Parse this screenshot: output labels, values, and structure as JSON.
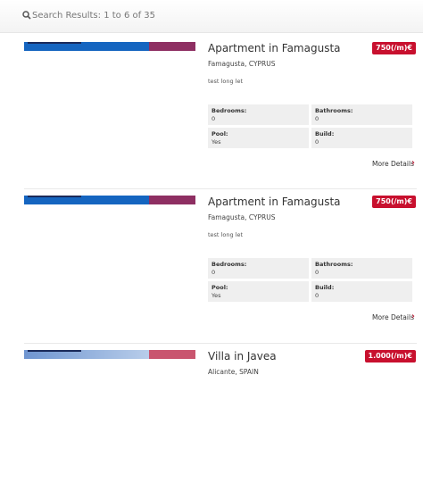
{
  "header": {
    "search_results": "Search Results: 1 to 6 of 35"
  },
  "listings": [
    {
      "title": "Apartment in Famagusta",
      "price": "750(/m)€",
      "location": "Famagusta, CYPRUS",
      "description": "test long let",
      "details": [
        {
          "label": "Bedrooms:",
          "value": "0"
        },
        {
          "label": "Bathrooms:",
          "value": "0"
        },
        {
          "label": "Pool:",
          "value": "Yes"
        },
        {
          "label": "Build:",
          "value": "0"
        }
      ],
      "more": "More Details"
    },
    {
      "title": "Apartment in Famagusta",
      "price": "750(/m)€",
      "location": "Famagusta, CYPRUS",
      "description": "test long let",
      "details": [
        {
          "label": "Bedrooms:",
          "value": "0"
        },
        {
          "label": "Bathrooms:",
          "value": "0"
        },
        {
          "label": "Pool:",
          "value": "Yes"
        },
        {
          "label": "Build:",
          "value": "0"
        }
      ],
      "more": "More Details"
    },
    {
      "title": "Villa in Javea",
      "price": "1.000(/m)€",
      "location": "Alicante, SPAIN"
    }
  ]
}
